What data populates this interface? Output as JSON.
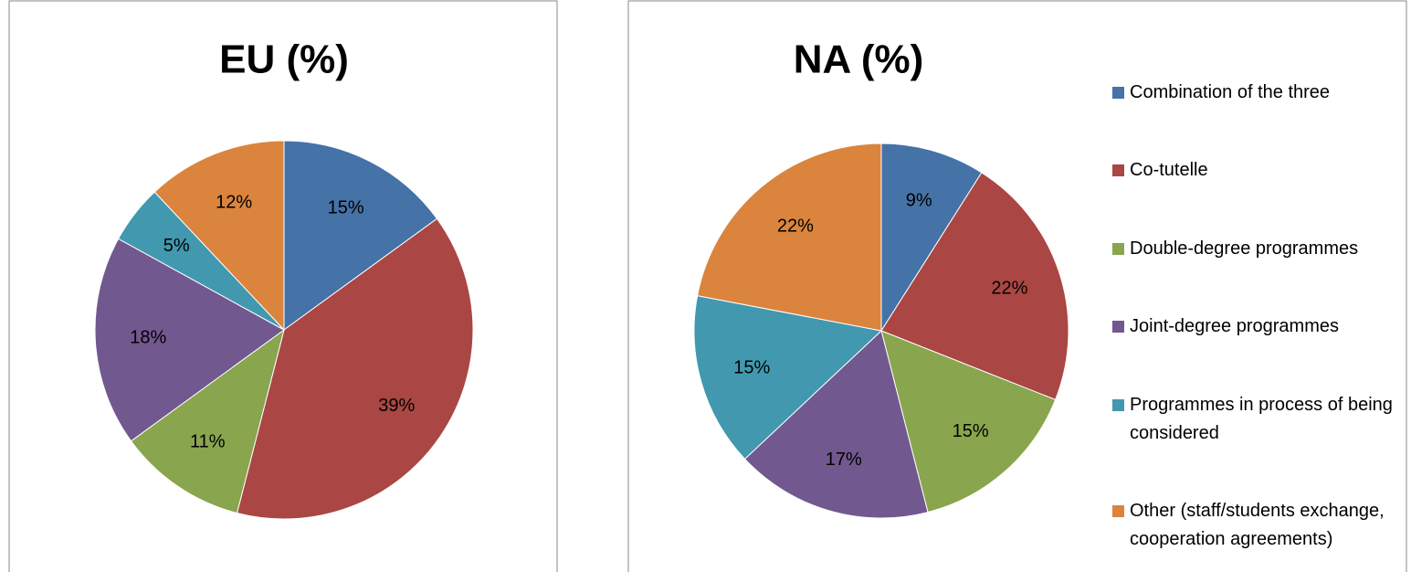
{
  "chart_data": [
    {
      "type": "pie",
      "title": "EU (%)",
      "values": [
        15,
        39,
        11,
        18,
        5,
        12
      ],
      "value_labels": [
        "15%",
        "39%",
        "11%",
        "18%",
        "5%",
        "12%"
      ],
      "colors": [
        "#4572a7",
        "#aa4643",
        "#89a54e",
        "#71588f",
        "#4198af",
        "#db843d"
      ]
    },
    {
      "type": "pie",
      "title": "NA (%)",
      "categories": [
        "Combination of the three",
        "Co-tutelle",
        "Double-degree programmes",
        "Joint-degree programmes",
        "Programmes in process of being considered",
        "Other (staff/students exchange, cooperation agreements)"
      ],
      "values": [
        9,
        22,
        15,
        17,
        15,
        22
      ],
      "value_labels": [
        "9%",
        "22%",
        "15%",
        "17%",
        "15%",
        "22%"
      ],
      "colors": [
        "#4572a7",
        "#aa4643",
        "#89a54e",
        "#71588f",
        "#4198af",
        "#db843d"
      ],
      "legend": "right"
    }
  ]
}
